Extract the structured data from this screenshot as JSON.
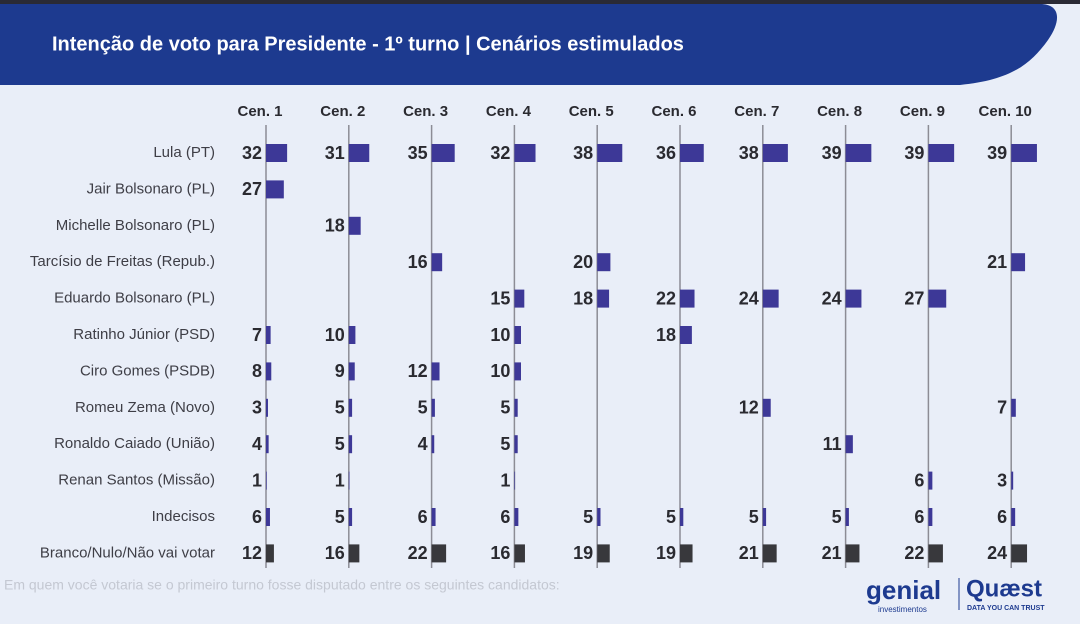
{
  "chart_data": {
    "type": "bar",
    "title": "Intenção de voto para Presidente - 1º turno | Cenários estimulados",
    "subtitle": "Em quem você votaria se o primeiro turno fosse disputado entre os seguintes candidatos:",
    "logos": [
      "genial",
      "investimentos",
      "Quæst",
      "DATA YOU CAN TRUST"
    ],
    "categories": [
      "Lula (PT)",
      "Jair Bolsonaro (PL)",
      "Michelle Bolsonaro (PL)",
      "Tarcísio de Freitas (Repub.)",
      "Eduardo Bolsonaro (PL)",
      "Ratinho Júnior (PSD)",
      "Ciro Gomes (PSDB)",
      "Romeu Zema (Novo)",
      "Ronaldo Caiado (União)",
      "Renan Santos (Missão)",
      "Indecisos",
      "Branco/Nulo/Não vai votar"
    ],
    "bar_colors": [
      "#3d3897",
      "#3d3897",
      "#3d3897",
      "#3d3897",
      "#3d3897",
      "#3d3897",
      "#3d3897",
      "#3d3897",
      "#3d3897",
      "#3d3897",
      "#3d3897",
      "#38383c"
    ],
    "series": [
      {
        "name": "Cen. 1",
        "values": [
          32,
          27,
          null,
          null,
          null,
          7,
          8,
          3,
          4,
          1,
          6,
          12
        ]
      },
      {
        "name": "Cen. 2",
        "values": [
          31,
          null,
          18,
          null,
          null,
          10,
          9,
          5,
          5,
          1,
          5,
          16
        ]
      },
      {
        "name": "Cen. 3",
        "values": [
          35,
          null,
          null,
          16,
          null,
          null,
          12,
          5,
          4,
          null,
          6,
          22
        ]
      },
      {
        "name": "Cen. 4",
        "values": [
          32,
          null,
          null,
          null,
          15,
          10,
          10,
          5,
          5,
          1,
          6,
          16
        ]
      },
      {
        "name": "Cen. 5",
        "values": [
          38,
          null,
          null,
          20,
          18,
          null,
          null,
          null,
          null,
          null,
          5,
          19
        ]
      },
      {
        "name": "Cen. 6",
        "values": [
          36,
          null,
          null,
          null,
          22,
          18,
          null,
          null,
          null,
          null,
          5,
          19
        ]
      },
      {
        "name": "Cen. 7",
        "values": [
          38,
          null,
          null,
          null,
          24,
          null,
          null,
          12,
          null,
          null,
          5,
          21
        ]
      },
      {
        "name": "Cen. 8",
        "values": [
          39,
          null,
          null,
          null,
          24,
          null,
          null,
          null,
          11,
          null,
          5,
          21
        ]
      },
      {
        "name": "Cen. 9",
        "values": [
          39,
          null,
          null,
          null,
          27,
          null,
          null,
          null,
          null,
          6,
          6,
          22
        ]
      },
      {
        "name": "Cen. 10",
        "values": [
          39,
          null,
          null,
          21,
          null,
          null,
          null,
          7,
          null,
          3,
          6,
          24
        ]
      }
    ]
  }
}
